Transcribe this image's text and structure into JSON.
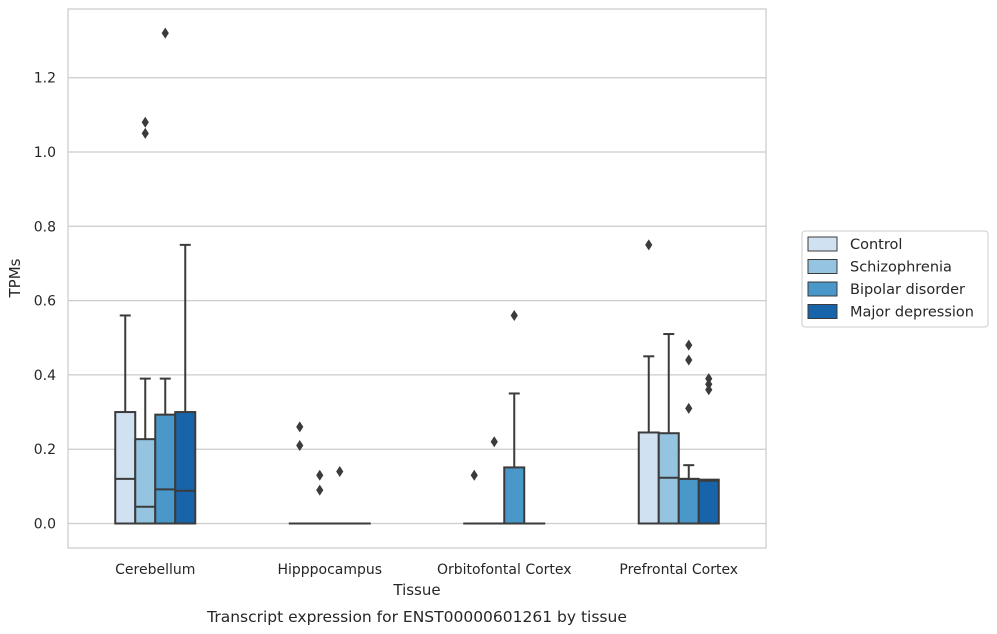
{
  "chart_data": {
    "type": "box",
    "caption": "Transcript expression for ENST00000601261 by tissue",
    "xlabel": "Tissue",
    "ylabel": "TPMs",
    "ylim": [
      -0.065,
      1.39
    ],
    "yticks": [
      0.0,
      0.2,
      0.4,
      0.6,
      0.8,
      1.0,
      1.2
    ],
    "ytick_labels": [
      "0.0",
      "0.2",
      "0.4",
      "0.6",
      "0.8",
      "1.0",
      "1.2"
    ],
    "grid": true,
    "legend_position": "right",
    "categories": [
      "Cerebellum",
      "Hipppocampus",
      "Orbitofontal Cortex",
      "Prefrontal Cortex"
    ],
    "series": [
      {
        "name": "Control",
        "color": "#d0e1f2",
        "boxes": [
          {
            "q1": 0.0,
            "median": 0.12,
            "q3": 0.3,
            "whisker_low": 0.0,
            "whisker_high": 0.56,
            "outliers": []
          },
          {
            "q1": 0.0,
            "median": 0.0,
            "q3": 0.0,
            "whisker_low": 0.0,
            "whisker_high": 0.0,
            "outliers": [
              0.26,
              0.21
            ]
          },
          {
            "q1": 0.0,
            "median": 0.0,
            "q3": 0.0,
            "whisker_low": 0.0,
            "whisker_high": 0.0,
            "outliers": [
              0.13
            ]
          },
          {
            "q1": 0.0,
            "median": 0.0,
            "q3": 0.245,
            "whisker_low": 0.0,
            "whisker_high": 0.45,
            "outliers": [
              0.75
            ]
          }
        ]
      },
      {
        "name": "Schizophrenia",
        "color": "#94c4df",
        "boxes": [
          {
            "q1": 0.0,
            "median": 0.045,
            "q3": 0.227,
            "whisker_low": 0.0,
            "whisker_high": 0.39,
            "outliers": [
              1.08,
              1.05
            ]
          },
          {
            "q1": 0.0,
            "median": 0.0,
            "q3": 0.0,
            "whisker_low": 0.0,
            "whisker_high": 0.0,
            "outliers": [
              0.13,
              0.09
            ]
          },
          {
            "q1": 0.0,
            "median": 0.0,
            "q3": 0.0,
            "whisker_low": 0.0,
            "whisker_high": 0.0,
            "outliers": [
              0.22
            ]
          },
          {
            "q1": 0.0,
            "median": 0.123,
            "q3": 0.243,
            "whisker_low": 0.0,
            "whisker_high": 0.51,
            "outliers": []
          }
        ]
      },
      {
        "name": "Bipolar disorder",
        "color": "#4a98c9",
        "boxes": [
          {
            "q1": 0.0,
            "median": 0.092,
            "q3": 0.293,
            "whisker_low": 0.0,
            "whisker_high": 0.39,
            "outliers": [
              1.32
            ]
          },
          {
            "q1": 0.0,
            "median": 0.0,
            "q3": 0.0,
            "whisker_low": 0.0,
            "whisker_high": 0.0,
            "outliers": [
              0.14
            ]
          },
          {
            "q1": 0.0,
            "median": 0.0,
            "q3": 0.151,
            "whisker_low": 0.0,
            "whisker_high": 0.35,
            "outliers": [
              0.56
            ]
          },
          {
            "q1": 0.0,
            "median": 0.12,
            "q3": 0.12,
            "whisker_low": 0.0,
            "whisker_high": 0.157,
            "outliers": [
              0.48,
              0.44,
              0.31
            ]
          }
        ]
      },
      {
        "name": "Major depression",
        "color": "#1764ab",
        "boxes": [
          {
            "q1": 0.0,
            "median": 0.088,
            "q3": 0.3,
            "whisker_low": 0.0,
            "whisker_high": 0.75,
            "outliers": []
          },
          {
            "q1": 0.0,
            "median": 0.0,
            "q3": 0.0,
            "whisker_low": 0.0,
            "whisker_high": 0.0,
            "outliers": []
          },
          {
            "q1": 0.0,
            "median": 0.0,
            "q3": 0.0,
            "whisker_low": 0.0,
            "whisker_high": 0.0,
            "outliers": []
          },
          {
            "q1": 0.0,
            "median": 0.115,
            "q3": 0.118,
            "whisker_low": 0.0,
            "whisker_high": 0.118,
            "outliers": [
              0.39,
              0.375,
              0.36
            ]
          }
        ]
      }
    ]
  }
}
